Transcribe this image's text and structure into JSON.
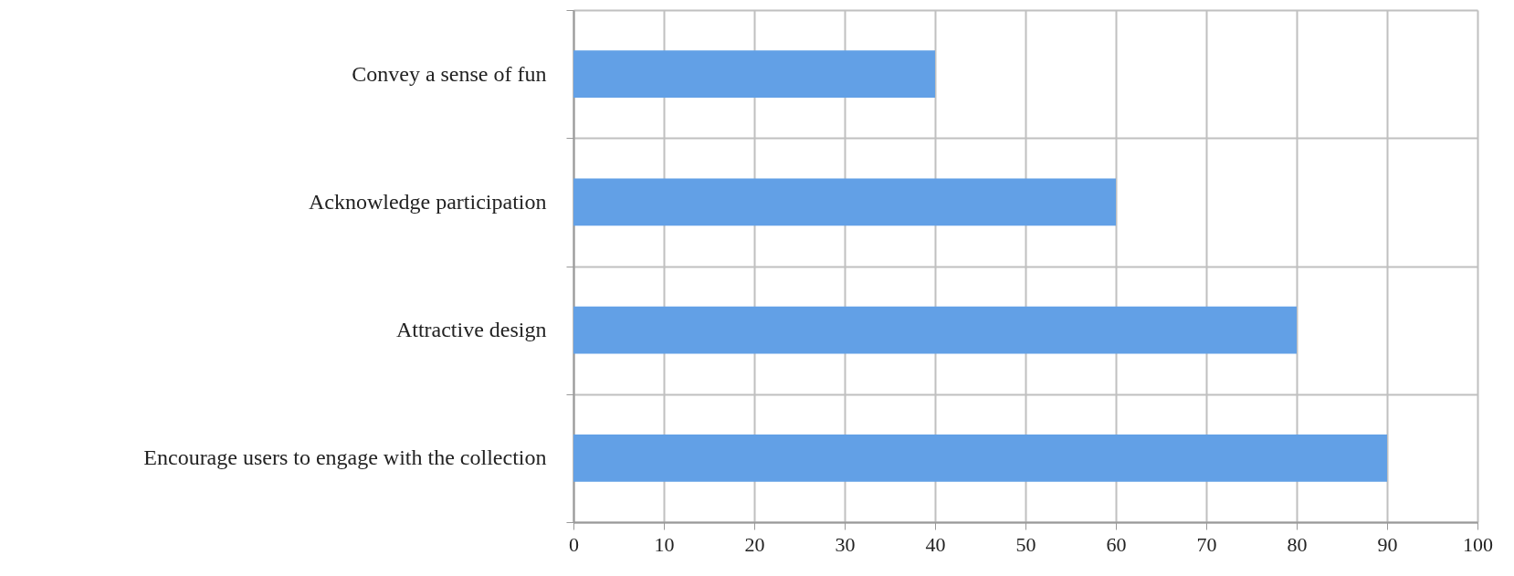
{
  "chart_data": {
    "type": "bar",
    "orientation": "horizontal",
    "categories": [
      "Convey a sense of fun",
      "Acknowledge participation",
      "Attractive design",
      "Encourage users to engage with the collection"
    ],
    "values": [
      40,
      60,
      80,
      90
    ],
    "color": "#62a0e6",
    "xlim": [
      0,
      100
    ],
    "xticks": [
      0,
      10,
      20,
      30,
      40,
      50,
      60,
      70,
      80,
      90,
      100
    ],
    "grid": true
  }
}
